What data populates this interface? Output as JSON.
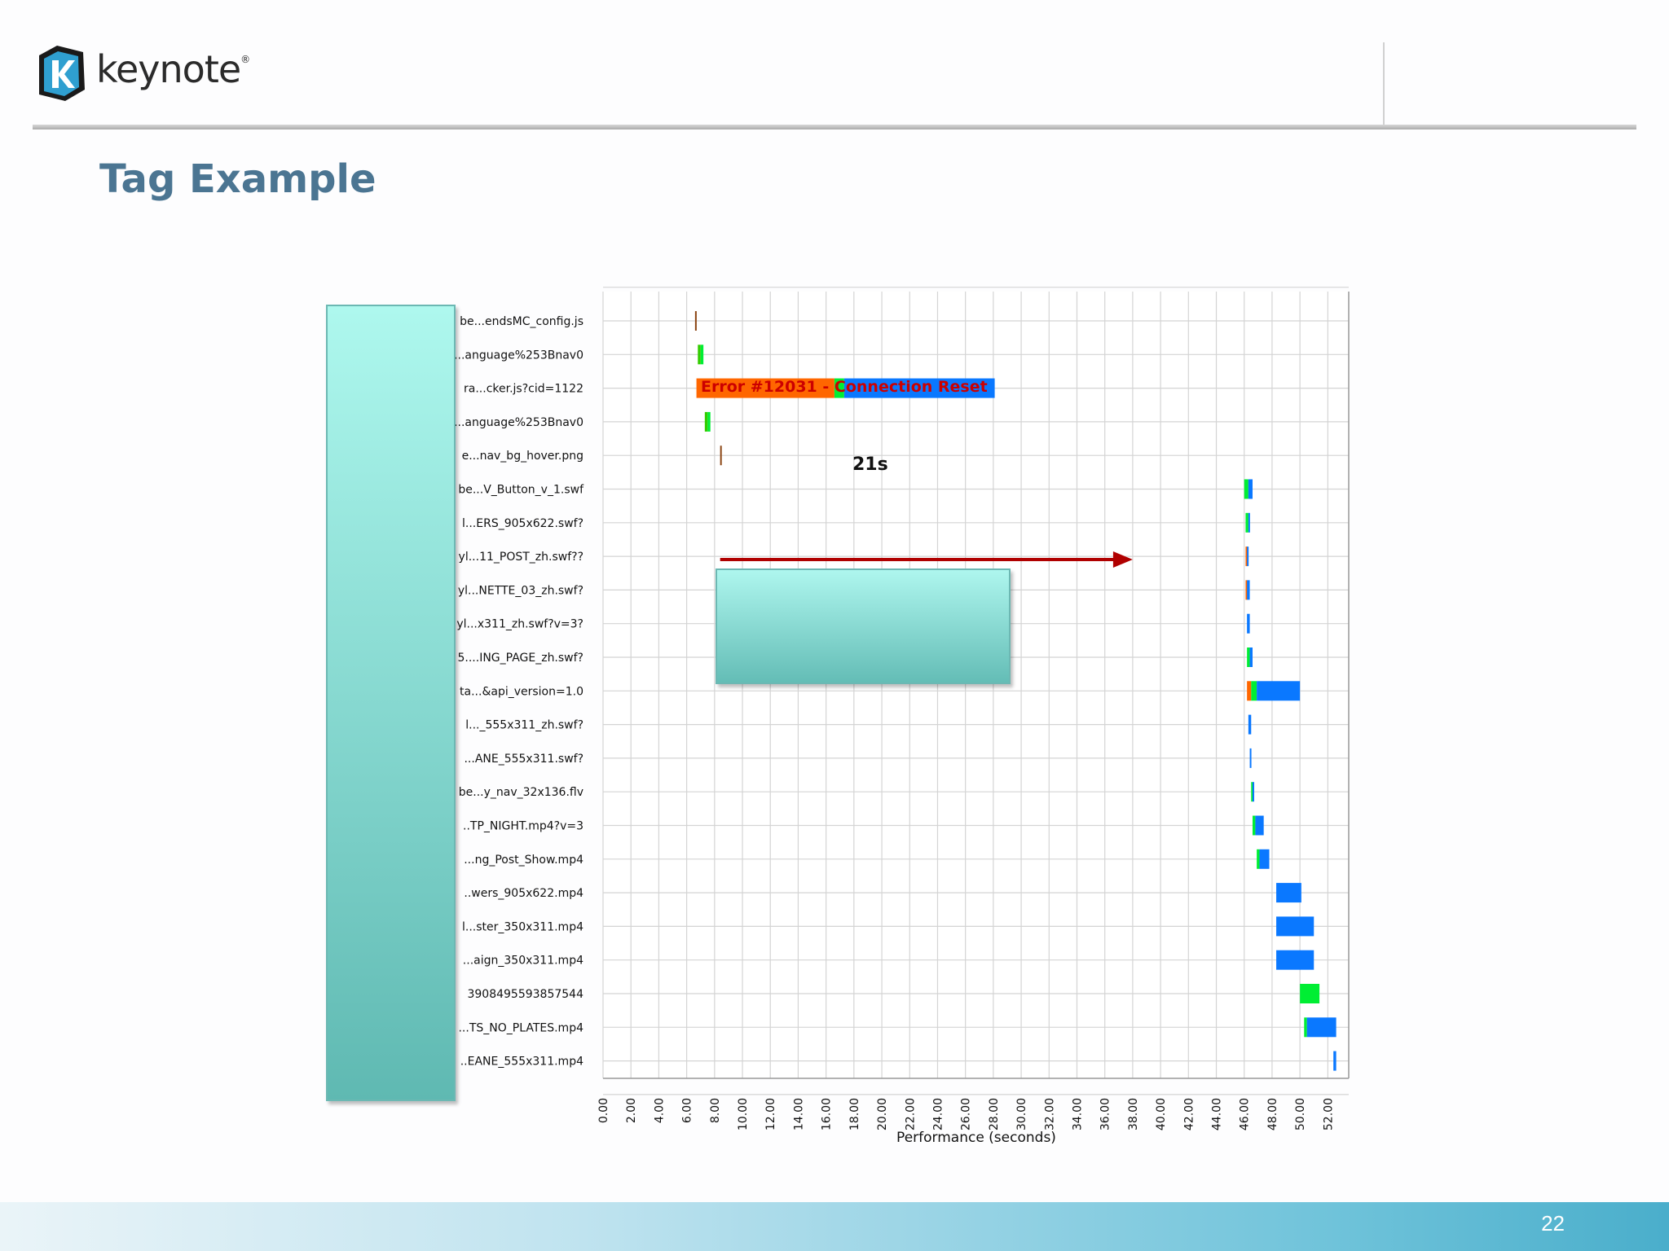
{
  "brand": {
    "name": "keynote",
    "reg": "®"
  },
  "slide": {
    "title": "Tag Example",
    "page_number": "22"
  },
  "colors": {
    "wait": "#ff6600",
    "connect": "#33cc00",
    "first_byte": "#00ee33",
    "content": "#0a78ff",
    "dns": "#8b4513",
    "error_text": "#cc0000",
    "arrow": "#b00000",
    "grid": "#d4d4d4"
  },
  "chart_data": {
    "type": "waterfall",
    "xlabel": "Performance (seconds)",
    "xlim": [
      0,
      53.5
    ],
    "xticks": [
      "0.00",
      "2.00",
      "4.00",
      "6.00",
      "8.00",
      "10.00",
      "12.00",
      "14.00",
      "16.00",
      "18.00",
      "20.00",
      "22.00",
      "24.00",
      "26.00",
      "28.00",
      "30.00",
      "32.00",
      "34.00",
      "36.00",
      "38.00",
      "40.00",
      "42.00",
      "44.00",
      "46.00",
      "48.00",
      "50.00",
      "52.00"
    ],
    "grid": true,
    "rows": [
      {
        "label": "be...endsMC_config.js",
        "segments": [
          {
            "start": 6.6,
            "end": 6.7,
            "type": "dns"
          }
        ]
      },
      {
        "label": "...anguage%253Bnav0",
        "segments": [
          {
            "start": 6.8,
            "end": 7.0,
            "type": "connect"
          },
          {
            "start": 7.0,
            "end": 7.2,
            "type": "first_byte"
          }
        ]
      },
      {
        "label": "ra...cker.js?cid=1122",
        "segments": [
          {
            "start": 6.7,
            "end": 16.6,
            "type": "wait"
          },
          {
            "start": 16.6,
            "end": 17.3,
            "type": "first_byte"
          },
          {
            "start": 17.3,
            "end": 28.1,
            "type": "content"
          }
        ]
      },
      {
        "label": "...anguage%253Bnav0",
        "segments": [
          {
            "start": 7.3,
            "end": 7.5,
            "type": "connect"
          },
          {
            "start": 7.5,
            "end": 7.7,
            "type": "first_byte"
          }
        ]
      },
      {
        "label": "e...nav_bg_hover.png",
        "segments": [
          {
            "start": 8.4,
            "end": 8.5,
            "type": "dns"
          }
        ]
      },
      {
        "label": "be...V_Button_v_1.swf",
        "segments": [
          {
            "start": 46.0,
            "end": 46.3,
            "type": "first_byte"
          },
          {
            "start": 46.3,
            "end": 46.6,
            "type": "content"
          }
        ]
      },
      {
        "label": "l...ERS_905x622.swf?",
        "segments": [
          {
            "start": 46.1,
            "end": 46.3,
            "type": "first_byte"
          },
          {
            "start": 46.3,
            "end": 46.4,
            "type": "content"
          }
        ]
      },
      {
        "label": "yl...11_POST_zh.swf??",
        "segments": [
          {
            "start": 46.1,
            "end": 46.2,
            "type": "wait"
          },
          {
            "start": 46.2,
            "end": 46.3,
            "type": "content"
          }
        ]
      },
      {
        "label": "yl...NETTE_03_zh.swf?",
        "segments": [
          {
            "start": 46.1,
            "end": 46.2,
            "type": "wait"
          },
          {
            "start": 46.2,
            "end": 46.4,
            "type": "content"
          }
        ]
      },
      {
        "label": "yl...x311_zh.swf?v=3?",
        "segments": [
          {
            "start": 46.2,
            "end": 46.4,
            "type": "content"
          }
        ]
      },
      {
        "label": "5....ING_PAGE_zh.swf?",
        "segments": [
          {
            "start": 46.2,
            "end": 46.4,
            "type": "first_byte"
          },
          {
            "start": 46.4,
            "end": 46.6,
            "type": "content"
          }
        ]
      },
      {
        "label": "ta...&api_version=1.0",
        "segments": [
          {
            "start": 46.2,
            "end": 46.5,
            "type": "wait"
          },
          {
            "start": 46.5,
            "end": 46.9,
            "type": "first_byte"
          },
          {
            "start": 46.9,
            "end": 50.0,
            "type": "content"
          }
        ]
      },
      {
        "label": "l..._555x311_zh.swf?",
        "segments": [
          {
            "start": 46.3,
            "end": 46.5,
            "type": "content"
          }
        ]
      },
      {
        "label": "...ANE_555x311.swf?",
        "segments": [
          {
            "start": 46.4,
            "end": 46.5,
            "type": "content"
          }
        ]
      },
      {
        "label": "be...y_nav_32x136.flv",
        "segments": [
          {
            "start": 46.5,
            "end": 46.6,
            "type": "first_byte"
          },
          {
            "start": 46.6,
            "end": 46.7,
            "type": "content"
          }
        ]
      },
      {
        "label": "..TP_NIGHT.mp4?v=3",
        "segments": [
          {
            "start": 46.6,
            "end": 46.8,
            "type": "first_byte"
          },
          {
            "start": 46.8,
            "end": 47.4,
            "type": "content"
          }
        ]
      },
      {
        "label": "...ng_Post_Show.mp4",
        "segments": [
          {
            "start": 46.9,
            "end": 47.1,
            "type": "first_byte"
          },
          {
            "start": 47.1,
            "end": 47.8,
            "type": "content"
          }
        ]
      },
      {
        "label": "..wers_905x622.mp4",
        "segments": [
          {
            "start": 48.3,
            "end": 50.1,
            "type": "content"
          }
        ]
      },
      {
        "label": "l...ster_350x311.mp4",
        "segments": [
          {
            "start": 48.3,
            "end": 51.0,
            "type": "content"
          }
        ]
      },
      {
        "label": "...aign_350x311.mp4",
        "segments": [
          {
            "start": 48.3,
            "end": 51.0,
            "type": "content"
          }
        ]
      },
      {
        "label": "3908495593857544",
        "segments": [
          {
            "start": 50.0,
            "end": 51.4,
            "type": "first_byte"
          }
        ]
      },
      {
        "label": "...TS_NO_PLATES.mp4",
        "segments": [
          {
            "start": 50.3,
            "end": 50.5,
            "type": "first_byte"
          },
          {
            "start": 50.5,
            "end": 52.6,
            "type": "content"
          }
        ]
      },
      {
        "label": "..EANE_555x311.mp4",
        "segments": [
          {
            "start": 52.4,
            "end": 52.6,
            "type": "content"
          }
        ]
      }
    ],
    "annotations": {
      "error_text": "Error #12031 - Connection Reset",
      "duration_text": "21s",
      "arrow": {
        "from": 8.4,
        "to": 38.0
      }
    }
  }
}
